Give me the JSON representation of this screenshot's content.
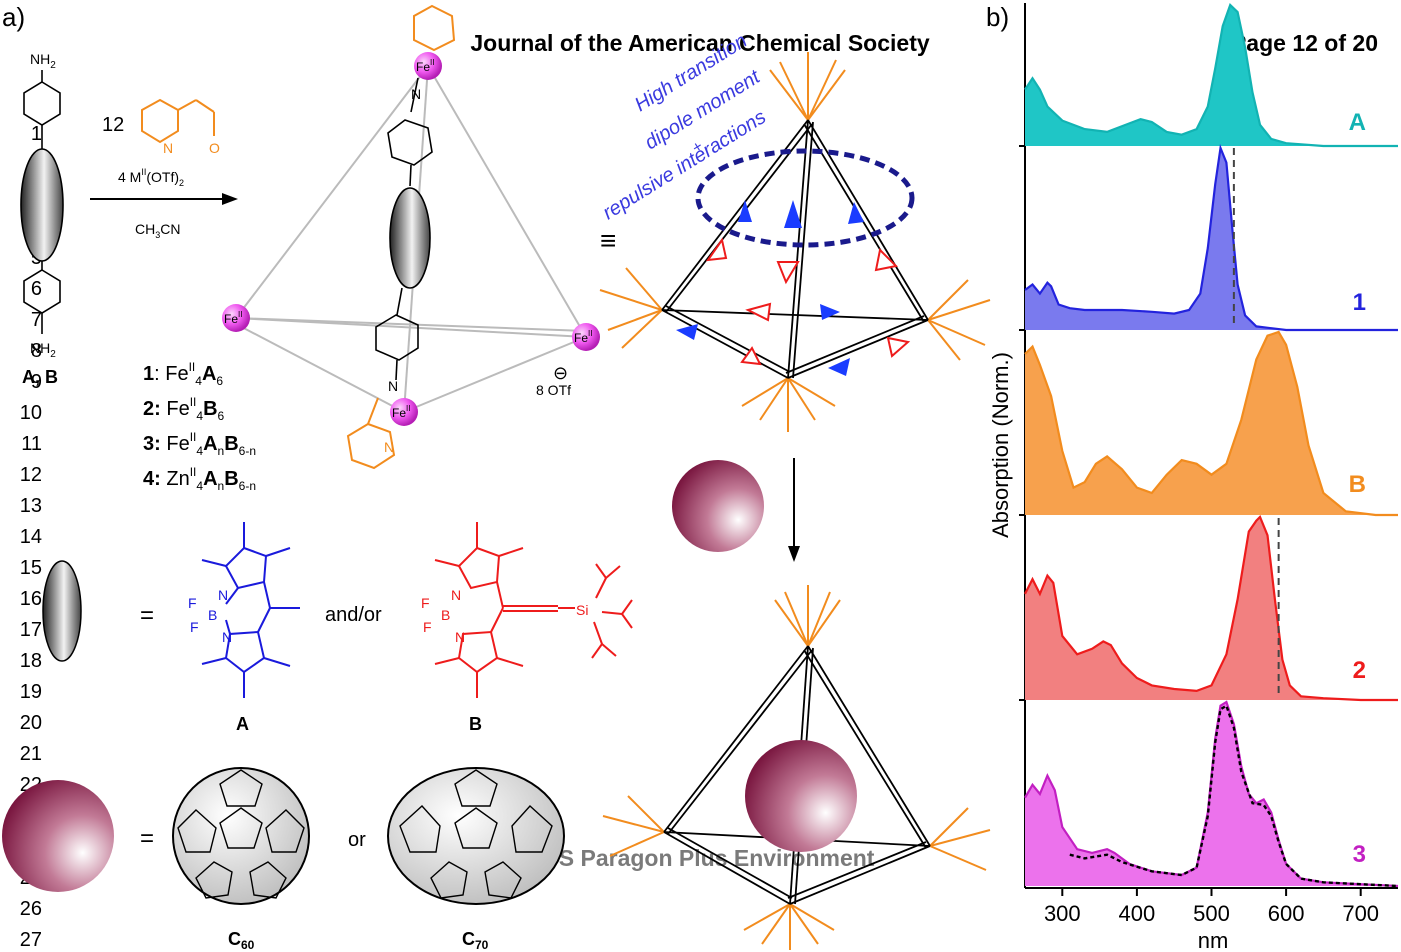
{
  "header": {
    "journal": "Journal of the American Chemical Society",
    "page": "Page 12 of 20",
    "footer": "ACS Paragon Plus Environment"
  },
  "line_numbers": [
    "1",
    "2",
    "3",
    "4",
    "5",
    "6",
    "7",
    "8",
    "9",
    "10",
    "11",
    "12",
    "13",
    "14",
    "15",
    "16",
    "17",
    "18",
    "19",
    "20",
    "21",
    "22",
    "23",
    "24",
    "25",
    "26",
    "27"
  ],
  "panel_a": {
    "label": "a)",
    "amine": "NH",
    "amine_sub": "2",
    "ligand_label": "A, B",
    "aldehyde_eq": "12",
    "aldehyde_N": "N",
    "aldehyde_O": "O",
    "metal_salt": "4 M",
    "metal_salt_sup": "II",
    "metal_salt_tail": "(OTf)",
    "metal_salt_sub": "2",
    "solvent": "CH",
    "solvent_sub": "3",
    "solvent_tail": "CN",
    "fe": "Fe",
    "fe_sup": "II",
    "imine_N": "N",
    "counterion_sign": "⊖",
    "counterion": "8 OTf",
    "compounds": [
      {
        "id": "1",
        "sep": ": ",
        "metal": "Fe",
        "metal_sup": "II",
        "count": "4",
        "part1": "A",
        "sub1": "6",
        "part2": "",
        "sub2": ""
      },
      {
        "id": "2:",
        "sep": " ",
        "metal": "Fe",
        "metal_sup": "II",
        "count": "4",
        "part1": "B",
        "sub1": "6",
        "part2": "",
        "sub2": ""
      },
      {
        "id": "3:",
        "sep": " ",
        "metal": "Fe",
        "metal_sup": "II",
        "count": "4",
        "part1": "A",
        "sub1": "n",
        "part2": "B",
        "sub2": "6-n"
      },
      {
        "id": "4:",
        "sep": " ",
        "metal": "Zn",
        "metal_sup": "II",
        "count": "4",
        "part1": "A",
        "sub1": "n",
        "part2": "B",
        "sub2": "6-n"
      }
    ],
    "equiv": "≡",
    "equals": "=",
    "and_or": "and/or",
    "or": "or",
    "bodipy_a_label": "A",
    "bodipy_b_label": "B",
    "atom_F": "F",
    "atom_B": "B",
    "atom_N": "N",
    "atom_Si": "Si",
    "fullerene_1": "C",
    "fullerene_1_sub": "60",
    "fullerene_2": "C",
    "fullerene_2_sub": "70",
    "annotation_lines": [
      "High transition",
      "dipole moment",
      "+",
      "repulsive interactions"
    ]
  },
  "panel_b": {
    "label": "b)",
    "ylabel": "Absorption (Norm.)",
    "xlabel": "nm"
  },
  "chart_data": {
    "type": "area",
    "xlabel": "nm",
    "ylabel": "Absorption (Norm.)",
    "xlim": [
      250,
      750
    ],
    "xticks": [
      300,
      400,
      500,
      600,
      700
    ],
    "stacked_panels": true,
    "colors": {
      "A": "#12b3b3",
      "1": "#2323dd",
      "B": "#f28c1e",
      "2": "#ee1c1c",
      "3": "#c21fc2"
    },
    "series": [
      {
        "name": "A",
        "color": "#12b3b3",
        "fill": "#1fc6c6",
        "x": [
          250,
          260,
          270,
          280,
          300,
          330,
          360,
          390,
          405,
          420,
          440,
          460,
          480,
          495,
          505,
          515,
          525,
          535,
          545,
          555,
          565,
          580,
          600,
          650,
          700,
          750
        ],
        "y": [
          0.4,
          0.48,
          0.4,
          0.28,
          0.18,
          0.12,
          0.1,
          0.16,
          0.19,
          0.17,
          0.1,
          0.08,
          0.12,
          0.28,
          0.55,
          0.85,
          1.0,
          0.95,
          0.7,
          0.38,
          0.15,
          0.05,
          0.02,
          0.0,
          0.0,
          0.0
        ]
      },
      {
        "name": "1",
        "color": "#2323dd",
        "fill": "#7a7aee",
        "x": [
          250,
          260,
          270,
          280,
          285,
          295,
          310,
          330,
          350,
          380,
          420,
          450,
          470,
          485,
          495,
          505,
          512,
          520,
          528,
          535,
          545,
          560,
          580,
          600,
          650,
          700,
          750
        ],
        "y": [
          0.22,
          0.25,
          0.2,
          0.26,
          0.24,
          0.14,
          0.12,
          0.11,
          0.11,
          0.11,
          0.1,
          0.09,
          0.11,
          0.2,
          0.45,
          0.8,
          1.0,
          0.92,
          0.55,
          0.25,
          0.08,
          0.02,
          0.01,
          0.0,
          0.0,
          0.0,
          0.0
        ]
      },
      {
        "name": "B",
        "color": "#f28c1e",
        "fill": "#f7a14d",
        "x": [
          250,
          260,
          270,
          285,
          300,
          315,
          330,
          345,
          360,
          380,
          400,
          420,
          440,
          460,
          480,
          500,
          520,
          540,
          560,
          575,
          590,
          600,
          615,
          630,
          650,
          680,
          720,
          750
        ],
        "y": [
          0.88,
          0.92,
          0.82,
          0.65,
          0.35,
          0.15,
          0.18,
          0.28,
          0.32,
          0.25,
          0.15,
          0.12,
          0.22,
          0.3,
          0.28,
          0.22,
          0.28,
          0.52,
          0.85,
          0.98,
          1.0,
          0.93,
          0.7,
          0.38,
          0.12,
          0.02,
          0.0,
          0.0
        ]
      },
      {
        "name": "2",
        "color": "#ee1c1c",
        "fill": "#f28080",
        "x": [
          250,
          260,
          270,
          280,
          288,
          300,
          320,
          340,
          355,
          365,
          380,
          400,
          420,
          450,
          480,
          500,
          520,
          535,
          550,
          560,
          565,
          575,
          585,
          595,
          605,
          620,
          650,
          700,
          750
        ],
        "y": [
          0.58,
          0.66,
          0.58,
          0.68,
          0.64,
          0.35,
          0.25,
          0.28,
          0.32,
          0.3,
          0.2,
          0.12,
          0.08,
          0.06,
          0.05,
          0.08,
          0.25,
          0.55,
          0.92,
          0.98,
          1.0,
          0.9,
          0.55,
          0.22,
          0.08,
          0.02,
          0.01,
          0.0,
          0.0
        ]
      },
      {
        "name": "3",
        "color": "#c21fc2",
        "fill": "#ec72ec",
        "x": [
          250,
          260,
          270,
          280,
          290,
          300,
          320,
          340,
          360,
          370,
          390,
          420,
          460,
          480,
          495,
          505,
          512,
          520,
          530,
          540,
          550,
          560,
          570,
          580,
          590,
          600,
          620,
          650,
          700,
          750
        ],
        "y": [
          0.48,
          0.55,
          0.5,
          0.6,
          0.52,
          0.32,
          0.2,
          0.18,
          0.2,
          0.18,
          0.12,
          0.08,
          0.06,
          0.1,
          0.4,
          0.8,
          0.98,
          1.0,
          0.88,
          0.65,
          0.5,
          0.45,
          0.47,
          0.4,
          0.25,
          0.12,
          0.04,
          0.02,
          0.01,
          0.0
        ]
      },
      {
        "name": "",
        "style": "dotted",
        "color": "#000000",
        "x": [
          310,
          330,
          360,
          380,
          420,
          460,
          480,
          495,
          505,
          512,
          520,
          530,
          540,
          555,
          570,
          580,
          590,
          600,
          620,
          650,
          700,
          750
        ],
        "y": [
          0.17,
          0.15,
          0.17,
          0.13,
          0.08,
          0.06,
          0.1,
          0.38,
          0.78,
          0.96,
          0.98,
          0.86,
          0.62,
          0.45,
          0.44,
          0.38,
          0.24,
          0.12,
          0.04,
          0.02,
          0.01,
          0.0
        ]
      }
    ],
    "markers": [
      {
        "panel": "A",
        "x": 530
      },
      {
        "panel": "1",
        "x": 530
      },
      {
        "panel": "2",
        "x": 590
      },
      {
        "panel": "3",
        "x": 590
      }
    ]
  }
}
